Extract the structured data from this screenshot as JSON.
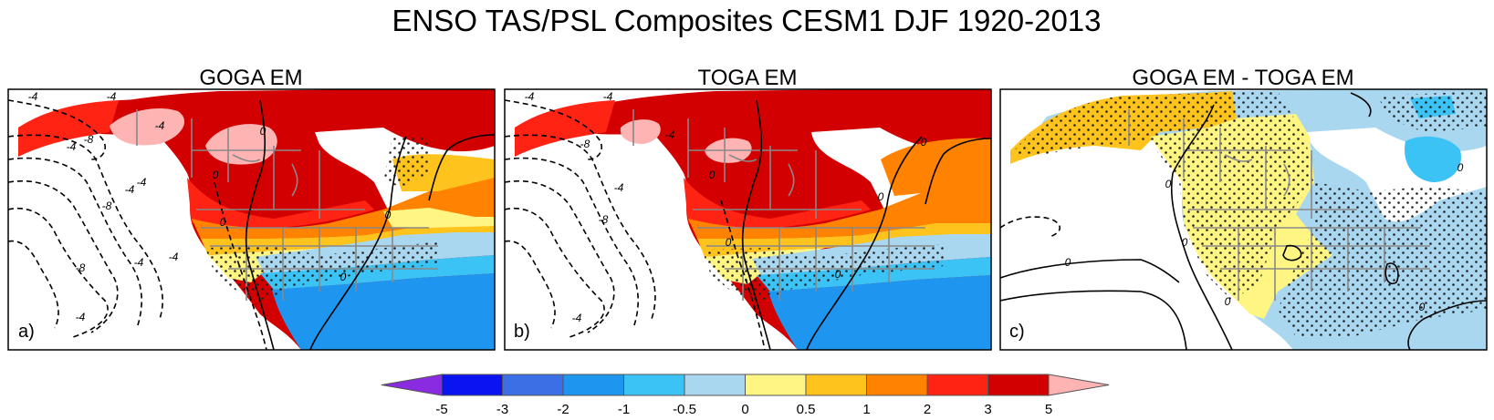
{
  "figure": {
    "title": "ENSO TAS/PSL Composites CESM1 DJF 1920-2013"
  },
  "panels": [
    {
      "title": "GOGA EM",
      "label": "a)",
      "psl_contour_labels": [
        "-4",
        "-4",
        "-4",
        "-8",
        "-4",
        "-4",
        "-8",
        "-4",
        "-8",
        "-4",
        "-4",
        "-4",
        "0",
        "0",
        "0",
        "0",
        "0"
      ]
    },
    {
      "title": "TOGA EM",
      "label": "b)",
      "psl_contour_labels": [
        "-4",
        "-4",
        "-4",
        "-8",
        "-4",
        "-8",
        "-4",
        "0",
        "0",
        "0",
        "0",
        "0"
      ]
    },
    {
      "title": "GOGA EM - TOGA EM",
      "label": "c)",
      "psl_contour_labels": [
        "0",
        "0",
        "0",
        "0",
        "0",
        "0"
      ]
    }
  ],
  "colorbar": {
    "tick_labels": [
      "-5",
      "-3",
      "-2",
      "-1",
      "-0.5",
      "0",
      "0.5",
      "1",
      "2",
      "3",
      "5"
    ],
    "colors": {
      "below_min": "#8a2be2",
      "lt_m3": "#0a14f0",
      "m3_m2": "#3c6ee6",
      "m2_m1": "#1e96f0",
      "m1_m05": "#3cc3f5",
      "m05_0": "#aad7f0",
      "0_05": "#fff582",
      "05_1": "#ffc31e",
      "1_2": "#ff8200",
      "2_3": "#ff2314",
      "3_5": "#d20000",
      "above_max": "#ffb4b4"
    }
  }
}
